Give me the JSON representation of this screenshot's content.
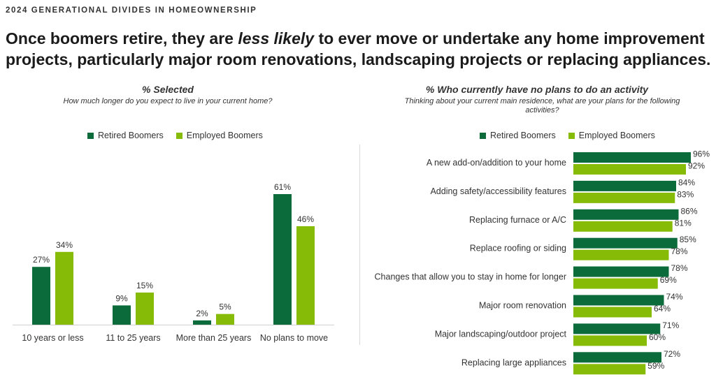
{
  "header": {
    "eyebrow": "2024 GENERATIONAL DIVIDES IN HOMEOWNERSHIP",
    "headline_pre": "Once boomers retire, they are ",
    "headline_em": "less likely",
    "headline_post": " to ever move or undertake any home improvement projects, particularly major room renovations, landscaping projects or replacing appliances."
  },
  "colors": {
    "retired": "#0c6b3a",
    "employed": "#86bc08"
  },
  "chart_data": [
    {
      "type": "bar",
      "title": "% Selected",
      "subtitle": "How much longer do you expect to live in your current home?",
      "categories": [
        "10 years or less",
        "11 to 25 years",
        "More than 25 years",
        "No plans to move"
      ],
      "series": [
        {
          "name": "Retired Boomers",
          "values": [
            27,
            9,
            2,
            61
          ],
          "labels": [
            "27%",
            "9%",
            "2%",
            "61%"
          ]
        },
        {
          "name": "Employed Boomers",
          "values": [
            34,
            15,
            5,
            46
          ],
          "labels": [
            "34%",
            "15%",
            "5%",
            "46%"
          ]
        }
      ],
      "ylim": [
        0,
        61
      ],
      "legend": "top"
    },
    {
      "type": "bar",
      "orientation": "horizontal",
      "title": "% Who currently have no plans to do an activity",
      "subtitle": "Thinking about your current main residence, what are your plans for the following activities?",
      "categories": [
        "A new add-on/addition to your home",
        "Adding safety/accessibility features",
        "Replacing furnace or A/C",
        "Replace roofing or siding",
        "Changes that allow you to stay in home for longer",
        "Major room renovation",
        "Major landscaping/outdoor project",
        "Replacing large appliances"
      ],
      "series": [
        {
          "name": "Retired Boomers",
          "values": [
            96,
            84,
            86,
            85,
            78,
            74,
            71,
            72
          ],
          "labels": [
            "96%",
            "84%",
            "86%",
            "85%",
            "78%",
            "74%",
            "71%",
            "72%"
          ]
        },
        {
          "name": "Employed Boomers",
          "values": [
            92,
            83,
            81,
            78,
            69,
            64,
            60,
            59
          ],
          "labels": [
            "92%",
            "83%",
            "81%",
            "78%",
            "69%",
            "64%",
            "60%",
            "59%"
          ]
        }
      ],
      "xlim": [
        0,
        100
      ],
      "legend": "top"
    }
  ]
}
